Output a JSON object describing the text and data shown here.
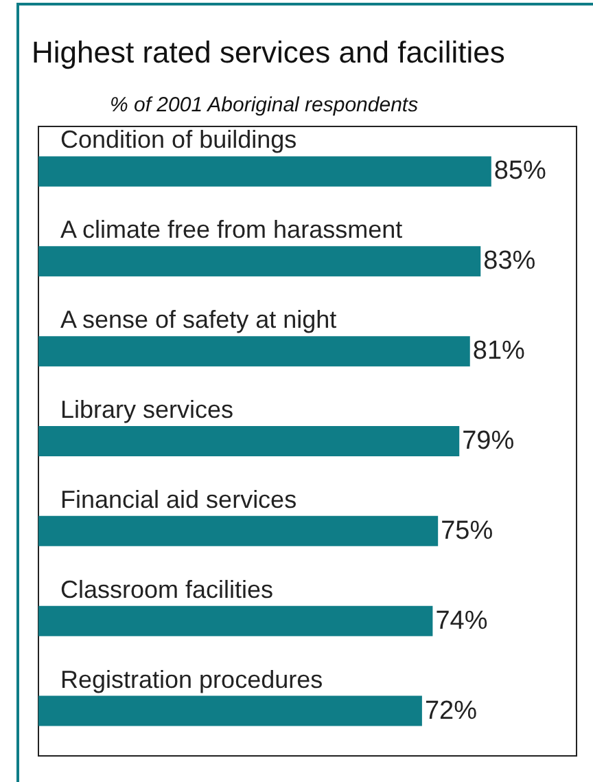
{
  "chart_data": {
    "type": "bar",
    "orientation": "horizontal",
    "title": "Highest rated services and facilities",
    "subtitle": "% of 2001 Aboriginal respondents",
    "categories": [
      "Condition of buildings",
      "A climate free from harassment",
      "A sense of safety at night",
      "Library services",
      "Financial aid services",
      "Classroom facilities",
      "Registration procedures"
    ],
    "values": [
      85,
      83,
      81,
      79,
      75,
      74,
      72
    ],
    "value_labels": [
      "85%",
      "83%",
      "81%",
      "79%",
      "75%",
      "74%",
      "72%"
    ],
    "color": "#0f7d87",
    "xlim": [
      0,
      101
    ],
    "tick_labels": "y"
  }
}
